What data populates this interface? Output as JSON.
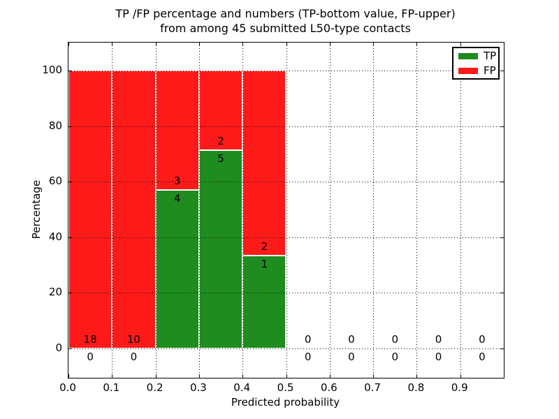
{
  "title": {
    "line1": "TP /FP percentage and numbers (TP-bottom value, FP-upper)",
    "line2": "from among 45 submitted L50-type contacts"
  },
  "axes": {
    "x_label": "Predicted probability",
    "y_label": "Percentage",
    "x_tick_labels": [
      "0.0",
      "0.1",
      "0.2",
      "0.3",
      "0.4",
      "0.5",
      "0.6",
      "0.7",
      "0.8",
      "0.9"
    ],
    "y_tick_labels": [
      "0",
      "20",
      "40",
      "60",
      "80",
      "100"
    ],
    "y_tick_values": [
      0,
      20,
      40,
      60,
      80,
      100
    ],
    "grid_style": "dotted"
  },
  "legend": {
    "position": "upper right",
    "items": [
      {
        "label": "TP",
        "color": "#1e8c1e"
      },
      {
        "label": "FP",
        "color": "#ff1a1a"
      }
    ]
  },
  "chart_data": {
    "type": "bar",
    "stacked": true,
    "title": "TP /FP percentage and numbers (TP-bottom value, FP-upper) from among 45 submitted L50-type contacts",
    "xlabel": "Predicted probability",
    "ylabel": "Percentage",
    "total_contacts": 45,
    "bin_edges": [
      0.0,
      0.1,
      0.2,
      0.3,
      0.4,
      0.5,
      0.6,
      0.7,
      0.8,
      0.9,
      1.0
    ],
    "xlim": [
      0.0,
      1.0
    ],
    "ylim": [
      -10.5,
      110.0
    ],
    "series": [
      {
        "name": "TP",
        "color": "#1e8c1e",
        "counts": [
          0,
          0,
          4,
          5,
          1,
          0,
          0,
          0,
          0,
          0
        ],
        "percent": [
          0,
          0,
          57.14,
          71.43,
          33.33,
          0,
          0,
          0,
          0,
          0
        ]
      },
      {
        "name": "FP",
        "color": "#ff1a1a",
        "counts": [
          18,
          10,
          3,
          2,
          2,
          0,
          0,
          0,
          0,
          0
        ],
        "percent": [
          100,
          100,
          42.86,
          28.57,
          66.67,
          0,
          0,
          0,
          0,
          0
        ]
      }
    ]
  }
}
